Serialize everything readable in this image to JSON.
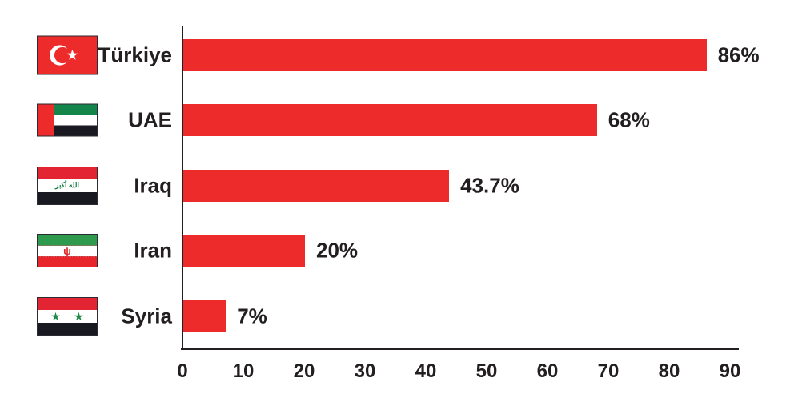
{
  "chart_data": {
    "type": "bar",
    "orientation": "horizontal",
    "title": "",
    "xlabel": "",
    "ylabel": "",
    "categories": [
      "Türkiye",
      "UAE",
      "Iraq",
      "Iran",
      "Syria"
    ],
    "values": [
      86,
      68,
      43.7,
      20,
      7
    ],
    "value_labels": [
      "86%",
      "68%",
      "43.7%",
      "20%",
      "7%"
    ],
    "x_ticks": [
      "0",
      "10",
      "20",
      "30",
      "40",
      "50",
      "60",
      "70",
      "80",
      "90"
    ],
    "xlim": [
      0,
      90
    ],
    "grid": false,
    "legend": false,
    "bar_color": "#ed2b2b",
    "axis_color": "#231f20",
    "text_color": "#231f20",
    "flag_icons": [
      "turkey-flag",
      "uae-flag",
      "iraq-flag",
      "iran-flag",
      "syria-flag"
    ],
    "iraq_flag_script": "الله أكبر",
    "iran_flag_emblem": "ψ",
    "syria_flag_star": "★"
  }
}
